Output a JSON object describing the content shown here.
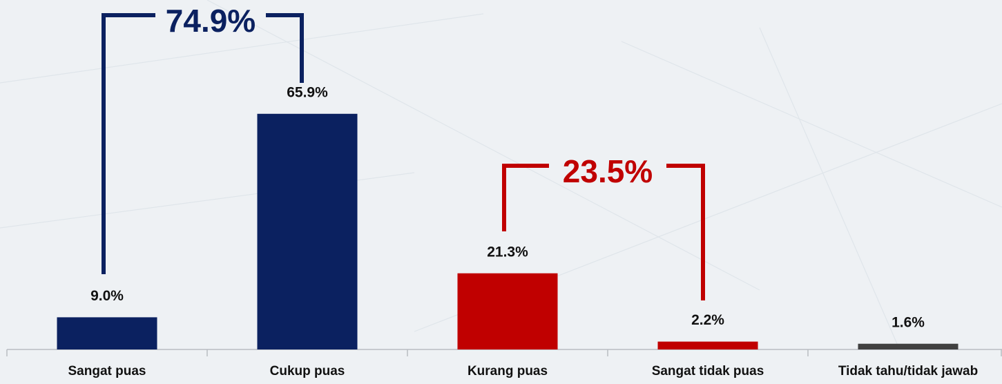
{
  "chart_data": {
    "type": "bar",
    "categories": [
      "Sangat puas",
      "Cukup puas",
      "Kurang puas",
      "Sangat tidak puas",
      "Tidak tahu/tidak jawab"
    ],
    "values": [
      9.0,
      65.9,
      21.3,
      2.2,
      1.6
    ],
    "value_labels": [
      "9.0%",
      "65.9%",
      "21.3%",
      "2.2%",
      "1.6%"
    ],
    "colors": [
      "#0b2160",
      "#0b2160",
      "#c00000",
      "#c00000",
      "#404040"
    ],
    "ylim": [
      0,
      90
    ],
    "annotations": [
      {
        "label": "74.9%",
        "value": 74.9,
        "color": "#0b2160"
      },
      {
        "label": "23.5%",
        "value": 23.5,
        "color": "#c00000"
      }
    ]
  }
}
